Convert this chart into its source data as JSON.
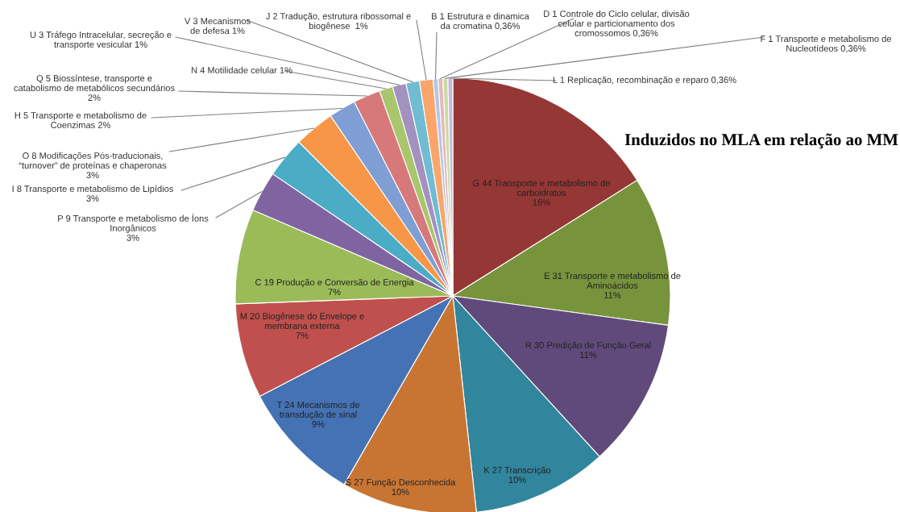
{
  "chart_data": {
    "type": "pie",
    "title": "Induzidos no MLA em relação ao MM",
    "categories": [
      "G 44 Transporte e metabolismo de\ncarboidratos",
      "E 31 Transporte e metabolismo de\nAminoácidos",
      "R 30 Predição de Função Geral",
      "K 27 Transcrição",
      "S 27 Função Desconhecida",
      "T 24 Mecanismos de\ntransdução de sinal",
      "M 20 Biogênese do Envelope e\nmembrana externa",
      "C 19 Produção e Conversão de Energia",
      "P 9 Transporte e metabolismo de Íons\nInorgânicos",
      "I 8 Transporte e metabolismo de Lipídios",
      "O 8 Modificações Pós-traducionais,\n“turnover” de proteínas e chaperonas",
      "H 5 Transporte e metabolismo de\nCoenzimas",
      "Q 5 Biossíntese, transporte e\ncatabolismo de metabólicos secundários",
      "N 4 Motilidade celular",
      "U 3 Tráfego Intracelular, secreção e\ntransporte vesicular",
      "V 3 Mecanismos\nde defesa",
      "J 2 Tradução, estrutura ribossomal e\nbiogênese ",
      "B 1 Estrutura e dinamica\nda cromatina",
      "D 1 Controle do Ciclo celular, divisão\ncelular e particionamento dos\ncromossomos",
      "F 1 Transporte e metabolismo de\nNucleotídeos",
      "L 1 Replicação, recombinação e reparo"
    ],
    "values": [
      16,
      11,
      11,
      10,
      10,
      9,
      7,
      7,
      3,
      3,
      3,
      2,
      2,
      1,
      1,
      1,
      1,
      0.36,
      0.36,
      0.36,
      0.36
    ],
    "value_labels": [
      "16%",
      "11%",
      "11%",
      "10%",
      "10%",
      "9%",
      "7%",
      "7%",
      "3%",
      "3%",
      "3%",
      "2%",
      "2%",
      "1%",
      "1%",
      "1%",
      "1%",
      "0,36%",
      "0,36%",
      "0,36%",
      "0,36%"
    ],
    "colors": [
      "#953735",
      "#77933c",
      "#604a7b",
      "#31859c",
      "#c87533",
      "#4472b4",
      "#c0504d",
      "#9bbb59",
      "#8064a2",
      "#4bacc6",
      "#f79646",
      "#7f9ed4",
      "#d7797a",
      "#a9c56d",
      "#a391c0",
      "#6fbcd3",
      "#f9a56b",
      "#b4c7e7",
      "#e6b9b8",
      "#c9dba5",
      "#c5b9dc"
    ],
    "legend": false
  }
}
